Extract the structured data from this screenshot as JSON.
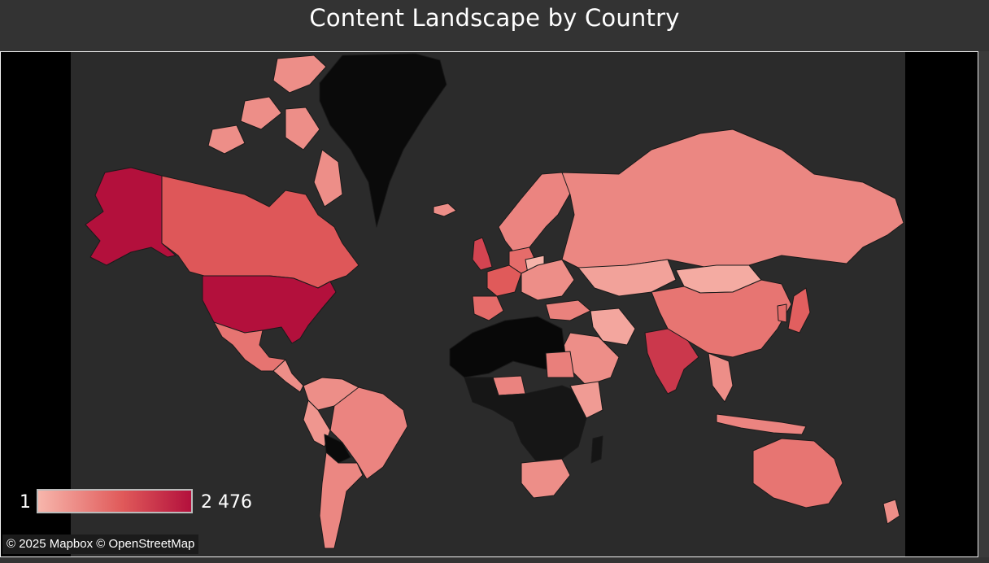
{
  "title": "Content Landscape by Country",
  "legend": {
    "min_label": "1",
    "max_label": "2 476",
    "min_value": 1,
    "max_value": 2476,
    "color_min": "#f7b6ac",
    "color_mid": "#e05a5a",
    "color_max": "#b3103c"
  },
  "attribution": "© 2025 Mapbox © OpenStreetMap",
  "colors": {
    "water": "#2b2b2b",
    "no_data": "#0a0a0a",
    "outside": "#000000",
    "border": "#1a1a1a"
  },
  "countries": [
    {
      "name": "United States",
      "value": 2476
    },
    {
      "name": "India",
      "value": 980
    },
    {
      "name": "United Kingdom",
      "value": 720
    },
    {
      "name": "Canada",
      "value": 420
    },
    {
      "name": "France",
      "value": 390
    },
    {
      "name": "Japan",
      "value": 330
    },
    {
      "name": "Spain",
      "value": 230
    },
    {
      "name": "South Korea",
      "value": 230
    },
    {
      "name": "Germany",
      "value": 220
    },
    {
      "name": "Mexico",
      "value": 170
    },
    {
      "name": "China",
      "value": 160
    },
    {
      "name": "Australia",
      "value": 160
    },
    {
      "name": "Egypt",
      "value": 110
    },
    {
      "name": "Brazil",
      "value": 90
    },
    {
      "name": "Russia",
      "value": 80
    },
    {
      "name": "Argentina",
      "value": 80
    },
    {
      "name": "Saudi Arabia",
      "value": 60
    },
    {
      "name": "Turkey",
      "value": 100
    },
    {
      "name": "South Africa",
      "value": 60
    },
    {
      "name": "Kazakhstan",
      "value": 20
    },
    {
      "name": "Mongolia",
      "value": 10
    },
    {
      "name": "Scandinavia",
      "value": 90
    },
    {
      "name": "Iran",
      "value": 15
    },
    {
      "name": "Indonesia",
      "value": 90
    },
    {
      "name": "Peru",
      "value": 40
    },
    {
      "name": "Chile",
      "value": 50
    },
    {
      "name": "Colombia",
      "value": 60
    },
    {
      "name": "Poland",
      "value": 3
    },
    {
      "name": "Nigeria",
      "value": 95
    },
    {
      "name": "Kenya",
      "value": 30
    },
    {
      "name": "Algeria",
      "value": 0
    },
    {
      "name": "Libya",
      "value": 0
    },
    {
      "name": "Bolivia",
      "value": 0
    },
    {
      "name": "Greenland",
      "value": 0
    }
  ]
}
